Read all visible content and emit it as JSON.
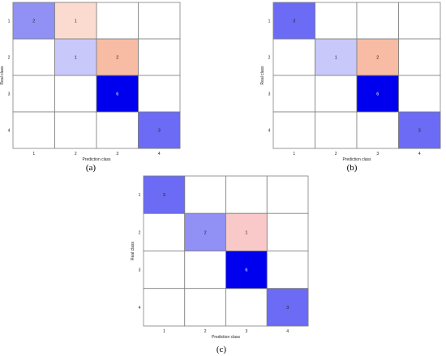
{
  "colors": {
    "blue_strong": "#0000ee",
    "blue_mid": "#6b6bf5",
    "blue_soft": "#9090f5",
    "blue_pale": "#c8c8fa",
    "salmon": "#f8bba3",
    "pink": "#f9c9c9",
    "peach": "#fbdbd0",
    "grid": "#7f7f7f"
  },
  "chart_data": [
    {
      "type": "heatmap",
      "panel_label": "(a)",
      "xlabel": "Prediction class",
      "ylabel": "Real class",
      "x_ticks": [
        "1",
        "2",
        "3",
        "4"
      ],
      "y_ticks": [
        "1",
        "2",
        "3",
        "4"
      ],
      "cells": [
        {
          "row": 1,
          "col": 1,
          "value": 2,
          "color": "#9090f5"
        },
        {
          "row": 1,
          "col": 2,
          "value": 1,
          "color": "#fbdbd0"
        },
        {
          "row": 2,
          "col": 2,
          "value": 1,
          "color": "#c8c8fa"
        },
        {
          "row": 2,
          "col": 3,
          "value": 2,
          "color": "#f8bba3"
        },
        {
          "row": 3,
          "col": 3,
          "value": 6,
          "color": "#0000ee"
        },
        {
          "row": 4,
          "col": 4,
          "value": 3,
          "color": "#6b6bf5"
        }
      ]
    },
    {
      "type": "heatmap",
      "panel_label": "(b)",
      "xlabel": "Prediction class",
      "ylabel": "Real class",
      "x_ticks": [
        "1",
        "2",
        "3",
        "4"
      ],
      "y_ticks": [
        "1",
        "2",
        "3",
        "4"
      ],
      "cells": [
        {
          "row": 1,
          "col": 1,
          "value": 3,
          "color": "#6b6bf5"
        },
        {
          "row": 2,
          "col": 2,
          "value": 1,
          "color": "#c8c8fa"
        },
        {
          "row": 2,
          "col": 3,
          "value": 2,
          "color": "#f8bba3"
        },
        {
          "row": 3,
          "col": 3,
          "value": 6,
          "color": "#0000ee"
        },
        {
          "row": 4,
          "col": 4,
          "value": 3,
          "color": "#6b6bf5"
        }
      ]
    },
    {
      "type": "heatmap",
      "panel_label": "(c)",
      "xlabel": "Prediction class",
      "ylabel": "Real class",
      "x_ticks": [
        "1",
        "2",
        "3",
        "4"
      ],
      "y_ticks": [
        "1",
        "2",
        "3",
        "4"
      ],
      "cells": [
        {
          "row": 1,
          "col": 1,
          "value": 3,
          "color": "#6b6bf5"
        },
        {
          "row": 2,
          "col": 2,
          "value": 2,
          "color": "#9090f5"
        },
        {
          "row": 2,
          "col": 3,
          "value": 1,
          "color": "#f9c9c9"
        },
        {
          "row": 3,
          "col": 3,
          "value": 6,
          "color": "#0000ee"
        },
        {
          "row": 4,
          "col": 4,
          "value": 3,
          "color": "#6b6bf5"
        }
      ]
    }
  ]
}
